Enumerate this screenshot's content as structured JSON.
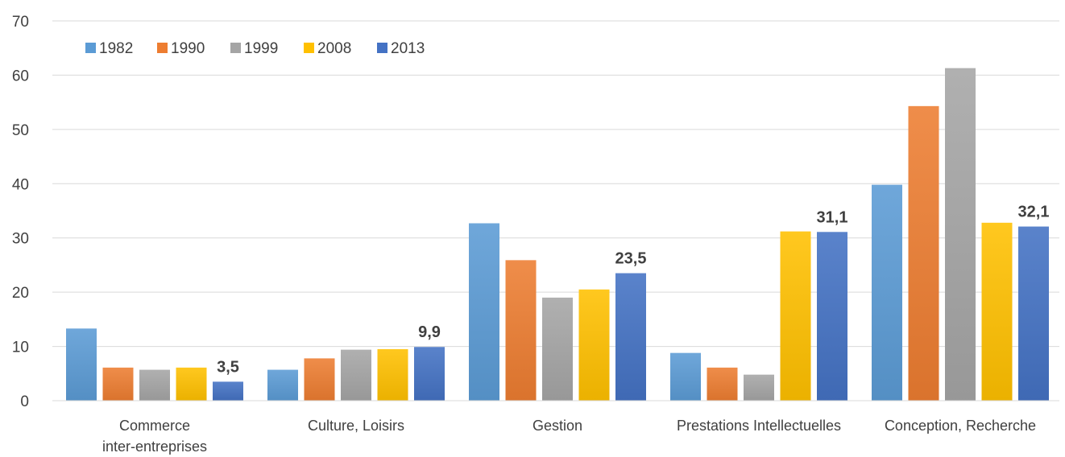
{
  "chart_data": {
    "type": "bar",
    "title": "",
    "xlabel": "",
    "ylabel": "",
    "ylim": [
      0,
      70
    ],
    "yticks": [
      0,
      10,
      20,
      30,
      40,
      50,
      60,
      70
    ],
    "grid": true,
    "legend_position": "top-left",
    "categories": [
      [
        "Commerce",
        "inter-entreprises"
      ],
      [
        "Culture, Loisirs"
      ],
      [
        "Gestion"
      ],
      [
        "Prestations Intellectuelles"
      ],
      [
        "Conception, Recherche"
      ]
    ],
    "series": [
      {
        "name": "1982",
        "color": "#5b9bd5",
        "values": [
          13.3,
          5.7,
          32.7,
          8.8,
          39.8
        ]
      },
      {
        "name": "1990",
        "color": "#ed7d31",
        "values": [
          6.1,
          7.8,
          25.9,
          6.1,
          54.3
        ]
      },
      {
        "name": "1999",
        "color": "#a5a5a5",
        "values": [
          5.7,
          9.4,
          19.0,
          4.8,
          61.3
        ]
      },
      {
        "name": "2008",
        "color": "#ffc000",
        "values": [
          6.1,
          9.5,
          20.5,
          31.2,
          32.8
        ]
      },
      {
        "name": "2013",
        "color": "#4472c4",
        "values": [
          3.5,
          9.9,
          23.5,
          31.1,
          32.1
        ]
      }
    ],
    "data_labels": [
      {
        "series": "2013",
        "category_index": 0,
        "text": "3,5"
      },
      {
        "series": "2013",
        "category_index": 1,
        "text": "9,9"
      },
      {
        "series": "2013",
        "category_index": 2,
        "text": "23,5"
      },
      {
        "series": "2013",
        "category_index": 3,
        "text": "31,1"
      },
      {
        "series": "2013",
        "category_index": 4,
        "text": "32,1"
      }
    ]
  }
}
